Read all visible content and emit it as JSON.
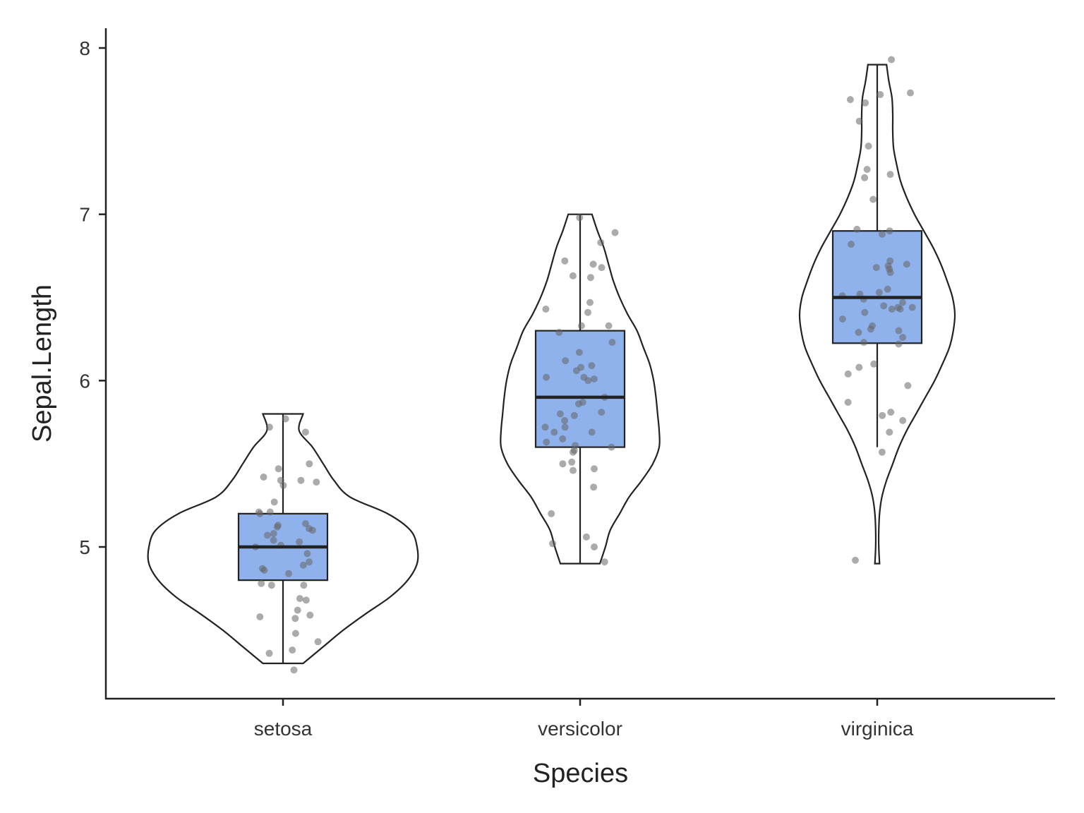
{
  "chart_data": {
    "type": "violin",
    "xlabel": "Species",
    "ylabel": "Sepal.Length",
    "ylim": [
      4.1,
      8.12
    ],
    "yticks": [
      5,
      6,
      7,
      8
    ],
    "ytick_labels": [
      "5",
      "6",
      "7",
      "8"
    ],
    "categories": [
      "setosa",
      "versicolor",
      "virginica"
    ],
    "grid": false,
    "box_color": "#8FB2ED",
    "point_color": "#666666",
    "groups": [
      {
        "name": "setosa",
        "box": {
          "min": 4.3,
          "q1": 4.8,
          "median": 5.0,
          "q3": 5.2,
          "max": 5.8
        },
        "density": [
          [
            4.3,
            0.15
          ],
          [
            4.4,
            0.3
          ],
          [
            4.5,
            0.45
          ],
          [
            4.6,
            0.62
          ],
          [
            4.7,
            0.8
          ],
          [
            4.8,
            0.93
          ],
          [
            4.9,
            1.0
          ],
          [
            5.0,
            1.0
          ],
          [
            5.1,
            0.95
          ],
          [
            5.2,
            0.78
          ],
          [
            5.3,
            0.5
          ],
          [
            5.4,
            0.38
          ],
          [
            5.5,
            0.3
          ],
          [
            5.6,
            0.22
          ],
          [
            5.7,
            0.12
          ],
          [
            5.8,
            0.15
          ]
        ],
        "points": [
          4.26,
          4.36,
          4.38,
          4.43,
          4.48,
          4.57,
          4.58,
          4.59,
          4.62,
          4.68,
          4.69,
          4.77,
          4.77,
          4.78,
          4.84,
          4.86,
          4.87,
          4.89,
          4.91,
          4.96,
          5.0,
          5.01,
          5.03,
          5.04,
          5.07,
          5.08,
          5.1,
          5.11,
          5.12,
          5.13,
          5.14,
          5.2,
          5.21,
          5.21,
          5.27,
          5.37,
          5.39,
          5.4,
          5.4,
          5.42,
          5.47,
          5.5,
          5.69,
          5.72,
          5.77
        ]
      },
      {
        "name": "versicolor",
        "box": {
          "min": 4.9,
          "q1": 5.6,
          "median": 5.9,
          "q3": 6.3,
          "max": 7.0
        },
        "density": [
          [
            4.9,
            0.25
          ],
          [
            5.0,
            0.32
          ],
          [
            5.1,
            0.38
          ],
          [
            5.2,
            0.5
          ],
          [
            5.3,
            0.62
          ],
          [
            5.4,
            0.78
          ],
          [
            5.5,
            0.92
          ],
          [
            5.6,
            1.0
          ],
          [
            5.7,
            1.0
          ],
          [
            5.8,
            0.98
          ],
          [
            5.9,
            0.96
          ],
          [
            6.0,
            0.93
          ],
          [
            6.1,
            0.88
          ],
          [
            6.2,
            0.8
          ],
          [
            6.3,
            0.72
          ],
          [
            6.4,
            0.6
          ],
          [
            6.5,
            0.5
          ],
          [
            6.6,
            0.42
          ],
          [
            6.7,
            0.36
          ],
          [
            6.8,
            0.3
          ],
          [
            6.9,
            0.22
          ],
          [
            7.0,
            0.15
          ]
        ],
        "points": [
          4.91,
          5.0,
          5.02,
          5.06,
          5.2,
          5.36,
          5.46,
          5.47,
          5.5,
          5.51,
          5.57,
          5.58,
          5.6,
          5.61,
          5.63,
          5.65,
          5.69,
          5.69,
          5.72,
          5.72,
          5.76,
          5.79,
          5.8,
          5.81,
          5.86,
          5.87,
          5.9,
          6.0,
          6.01,
          6.02,
          6.02,
          6.06,
          6.08,
          6.09,
          6.12,
          6.17,
          6.23,
          6.29,
          6.33,
          6.33,
          6.41,
          6.43,
          6.47,
          6.62,
          6.63,
          6.68,
          6.7,
          6.72,
          6.83,
          6.89,
          6.98
        ]
      },
      {
        "name": "virginica",
        "box": {
          "min": 5.6,
          "q1": 6.225,
          "median": 6.5,
          "q3": 6.9,
          "max": 7.9
        },
        "density": [
          [
            4.9,
            0.03
          ],
          [
            5.0,
            0.02
          ],
          [
            5.1,
            0.02
          ],
          [
            5.2,
            0.03
          ],
          [
            5.3,
            0.06
          ],
          [
            5.4,
            0.12
          ],
          [
            5.5,
            0.2
          ],
          [
            5.6,
            0.28
          ],
          [
            5.7,
            0.38
          ],
          [
            5.8,
            0.5
          ],
          [
            5.9,
            0.62
          ],
          [
            6.0,
            0.74
          ],
          [
            6.1,
            0.84
          ],
          [
            6.2,
            0.93
          ],
          [
            6.3,
            0.98
          ],
          [
            6.4,
            1.0
          ],
          [
            6.5,
            0.97
          ],
          [
            6.6,
            0.9
          ],
          [
            6.7,
            0.82
          ],
          [
            6.8,
            0.72
          ],
          [
            6.9,
            0.6
          ],
          [
            7.0,
            0.48
          ],
          [
            7.1,
            0.38
          ],
          [
            7.2,
            0.3
          ],
          [
            7.3,
            0.25
          ],
          [
            7.4,
            0.21
          ],
          [
            7.5,
            0.2
          ],
          [
            7.6,
            0.2
          ],
          [
            7.7,
            0.19
          ],
          [
            7.8,
            0.15
          ],
          [
            7.9,
            0.12
          ]
        ],
        "points": [
          4.92,
          5.57,
          5.69,
          5.76,
          5.79,
          5.81,
          5.87,
          5.97,
          6.04,
          6.08,
          6.1,
          6.22,
          6.23,
          6.26,
          6.29,
          6.3,
          6.31,
          6.33,
          6.37,
          6.41,
          6.43,
          6.43,
          6.44,
          6.44,
          6.45,
          6.47,
          6.49,
          6.51,
          6.52,
          6.53,
          6.55,
          6.65,
          6.67,
          6.68,
          6.69,
          6.7,
          6.72,
          6.82,
          6.88,
          6.91,
          6.9,
          7.09,
          7.22,
          7.24,
          7.27,
          7.41,
          7.56,
          7.67,
          7.69,
          7.72,
          7.73,
          7.93
        ]
      }
    ]
  }
}
